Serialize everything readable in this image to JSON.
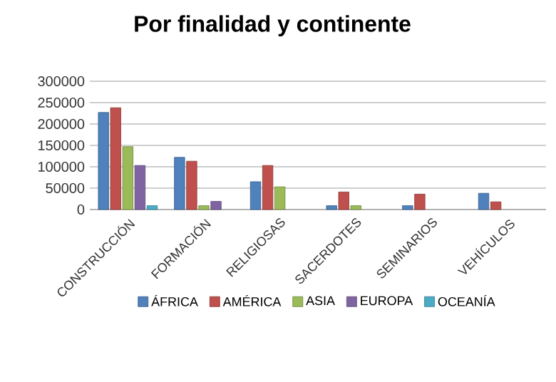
{
  "chart_data": {
    "type": "bar",
    "title": "Por finalidad y continente",
    "categories": [
      "CONSTRUCCIÓN",
      "FORMACIÓN",
      "RELIGIOSAS",
      "SACERDOTES",
      "SEMINARIOS",
      "VEHÍCULOS"
    ],
    "series": [
      {
        "name": "ÁFRICA",
        "color": "#4f81bd",
        "values": [
          227000,
          122000,
          65000,
          9000,
          9000,
          38000
        ]
      },
      {
        "name": "AMÉRICA",
        "color": "#c0504d",
        "values": [
          238000,
          113000,
          103000,
          41000,
          36000,
          18000
        ]
      },
      {
        "name": "ASIA",
        "color": "#9bbb59",
        "values": [
          147000,
          9000,
          53000,
          9000,
          null,
          null
        ]
      },
      {
        "name": "EUROPA",
        "color": "#8064a2",
        "values": [
          103000,
          19000,
          null,
          null,
          null,
          null
        ]
      },
      {
        "name": "OCEANÍA",
        "color": "#4bacc6",
        "values": [
          9000,
          null,
          null,
          null,
          null,
          null
        ]
      }
    ],
    "ylim": [
      0,
      300000
    ],
    "yticks": [
      0,
      50000,
      100000,
      150000,
      200000,
      250000,
      300000
    ],
    "grid": "y",
    "legend": "bottom"
  }
}
